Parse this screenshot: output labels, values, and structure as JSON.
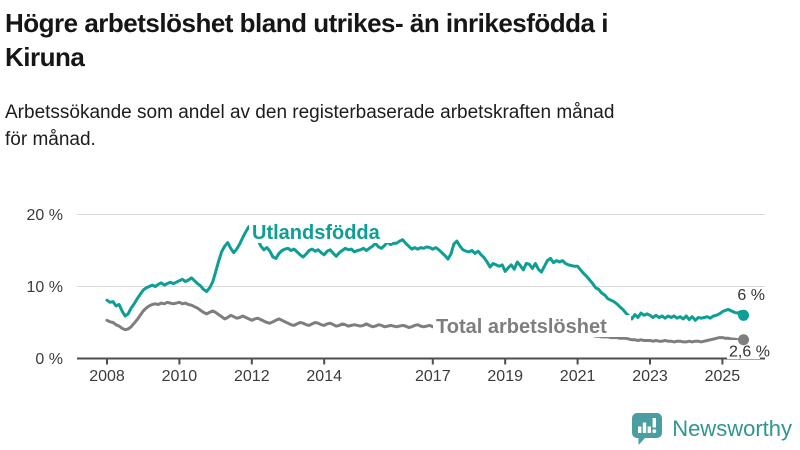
{
  "header": {
    "title": "Högre arbetslöshet bland utrikes- än inrikesfödda i\nKiruna",
    "subtitle": "Arbetssökande som andel av den registerbaserade arbetskraften månad\nför månad."
  },
  "chart_data": {
    "type": "line",
    "title": "Högre arbetslöshet bland utrikes- än inrikesfödda i Kiruna",
    "subtitle": "Arbetssökande som andel av den registerbaserade arbetskraften månad för månad.",
    "x_start_year": 2008,
    "points_per_year": 12,
    "x_end": "2025-08",
    "ylim": [
      0,
      20
    ],
    "grid": "horizontal",
    "yticks": [
      {
        "value": 0,
        "label": "0 %"
      },
      {
        "value": 10,
        "label": "10 %"
      },
      {
        "value": 20,
        "label": "20 %"
      }
    ],
    "xticks": [
      {
        "year": 2008,
        "label": "2008"
      },
      {
        "year": 2010,
        "label": "2010"
      },
      {
        "year": 2012,
        "label": "2012"
      },
      {
        "year": 2014,
        "label": "2014"
      },
      {
        "year": 2017,
        "label": "2017"
      },
      {
        "year": 2019,
        "label": "2019"
      },
      {
        "year": 2021,
        "label": "2021"
      },
      {
        "year": 2023,
        "label": "2023"
      },
      {
        "year": 2025,
        "label": "2025"
      }
    ],
    "series": [
      {
        "name": "Utlandsfödda",
        "color": "#0d9e94",
        "end_label": "6 %",
        "end_value": 6.0,
        "values": [
          8.1,
          7.8,
          7.9,
          7.3,
          7.5,
          6.6,
          5.9,
          6.2,
          7.0,
          7.6,
          8.3,
          8.9,
          9.5,
          9.8,
          10.0,
          10.2,
          10.0,
          10.3,
          10.5,
          10.2,
          10.4,
          10.6,
          10.4,
          10.6,
          10.8,
          11.0,
          10.7,
          10.9,
          11.2,
          10.8,
          10.4,
          10.1,
          9.6,
          9.3,
          9.8,
          10.6,
          12.0,
          13.5,
          14.8,
          15.6,
          16.1,
          15.3,
          14.7,
          15.2,
          15.9,
          16.8,
          17.6,
          18.3,
          18.6,
          17.4,
          16.5,
          15.6,
          15.1,
          15.4,
          14.9,
          14.1,
          13.9,
          14.6,
          15.0,
          15.2,
          15.3,
          15.0,
          15.2,
          14.8,
          14.4,
          14.1,
          14.5,
          15.0,
          15.2,
          14.9,
          15.1,
          14.7,
          14.4,
          14.9,
          15.1,
          14.6,
          14.2,
          14.7,
          15.0,
          15.3,
          15.1,
          15.2,
          14.8,
          15.0,
          15.1,
          15.3,
          15.0,
          15.3,
          15.6,
          16.0,
          15.5,
          15.3,
          15.7,
          16.2,
          15.8,
          16.0,
          16.0,
          16.3,
          16.5,
          16.0,
          15.6,
          15.2,
          15.4,
          15.2,
          15.4,
          15.3,
          15.5,
          15.4,
          15.2,
          15.4,
          15.1,
          14.7,
          14.3,
          13.8,
          14.5,
          15.9,
          16.3,
          15.6,
          15.1,
          14.9,
          14.8,
          15.0,
          14.6,
          14.9,
          14.4,
          14.0,
          13.4,
          12.7,
          13.2,
          13.0,
          12.8,
          13.0,
          12.1,
          12.6,
          13.0,
          12.4,
          13.4,
          12.9,
          12.3,
          13.2,
          13.1,
          12.5,
          13.2,
          12.4,
          12.0,
          12.8,
          13.6,
          13.9,
          13.3,
          13.6,
          13.4,
          13.6,
          13.2,
          13.0,
          12.9,
          12.8,
          12.8,
          12.3,
          11.8,
          11.4,
          10.9,
          10.4,
          9.8,
          9.6,
          9.1,
          8.8,
          8.3,
          8.1,
          7.9,
          7.6,
          7.2,
          6.8,
          6.3,
          5.9,
          5.5,
          6.1,
          5.7,
          6.3,
          6.0,
          6.2,
          6.0,
          5.7,
          6.0,
          5.7,
          5.9,
          5.6,
          5.9,
          5.7,
          5.9,
          5.6,
          5.8,
          5.5,
          5.9,
          5.4,
          5.8,
          5.3,
          5.7,
          5.6,
          5.7,
          5.8,
          5.6,
          5.9,
          6.0,
          6.2,
          6.5,
          6.7,
          6.8,
          6.6,
          6.4,
          6.3,
          6.5,
          6.0
        ]
      },
      {
        "name": "Total arbetslöshet",
        "color": "#7e7e7e",
        "end_label": "2,6 %",
        "end_value": 2.6,
        "values": [
          5.3,
          5.1,
          5.0,
          4.7,
          4.5,
          4.2,
          4.0,
          4.1,
          4.4,
          4.9,
          5.4,
          6.0,
          6.6,
          7.0,
          7.3,
          7.5,
          7.6,
          7.5,
          7.7,
          7.6,
          7.8,
          7.7,
          7.6,
          7.7,
          7.8,
          7.6,
          7.7,
          7.5,
          7.4,
          7.2,
          7.0,
          6.7,
          6.4,
          6.2,
          6.4,
          6.6,
          6.4,
          6.1,
          5.8,
          5.5,
          5.7,
          6.0,
          5.8,
          5.6,
          5.7,
          5.9,
          5.7,
          5.5,
          5.3,
          5.5,
          5.6,
          5.4,
          5.2,
          5.0,
          4.9,
          5.1,
          5.3,
          5.5,
          5.3,
          5.1,
          4.9,
          4.7,
          4.6,
          4.8,
          5.0,
          4.9,
          4.7,
          4.6,
          4.8,
          5.0,
          4.9,
          4.7,
          4.6,
          4.8,
          4.9,
          4.7,
          4.5,
          4.6,
          4.8,
          4.7,
          4.5,
          4.6,
          4.7,
          4.6,
          4.5,
          4.6,
          4.8,
          4.6,
          4.4,
          4.5,
          4.7,
          4.6,
          4.4,
          4.5,
          4.6,
          4.5,
          4.4,
          4.5,
          4.6,
          4.5,
          4.3,
          4.4,
          4.6,
          4.7,
          4.5,
          4.4,
          4.5,
          4.6,
          4.4,
          4.5,
          4.6,
          4.4,
          4.3,
          4.4,
          4.5,
          4.4,
          4.3,
          4.2,
          4.1,
          4.0,
          4.0,
          3.9,
          3.9,
          3.8,
          3.8,
          3.7,
          3.7,
          3.6,
          3.6,
          3.5,
          3.5,
          3.5,
          3.5,
          3.4,
          3.4,
          3.4,
          3.3,
          3.3,
          3.3,
          3.2,
          3.2,
          3.2,
          3.2,
          3.2,
          3.3,
          3.4,
          3.6,
          3.8,
          3.9,
          3.9,
          3.8,
          3.8,
          3.7,
          3.6,
          3.5,
          3.5,
          3.4,
          3.4,
          3.3,
          3.3,
          3.2,
          3.2,
          3.1,
          3.1,
          3.0,
          3.0,
          3.0,
          2.9,
          2.9,
          2.9,
          2.8,
          2.8,
          2.8,
          2.7,
          2.6,
          2.6,
          2.5,
          2.6,
          2.5,
          2.5,
          2.5,
          2.4,
          2.5,
          2.4,
          2.4,
          2.5,
          2.4,
          2.4,
          2.3,
          2.4,
          2.4,
          2.3,
          2.3,
          2.4,
          2.3,
          2.4,
          2.4,
          2.3,
          2.4,
          2.5,
          2.6,
          2.7,
          2.8,
          2.9,
          2.9,
          2.8,
          2.8,
          2.7,
          2.7,
          2.6,
          2.6,
          2.6
        ]
      }
    ],
    "colors": {
      "grid": "#d9d9d9",
      "axis": "#4d4d4d",
      "tick_text": "#3b3b3b",
      "value_text": "#333333"
    }
  },
  "footer": {
    "brand": "Newsworthy",
    "logo_icon": "newsworthy-speech-bubble-bars-icon",
    "brand_color": "#2f9591",
    "icon_color": "#4a9da0"
  }
}
